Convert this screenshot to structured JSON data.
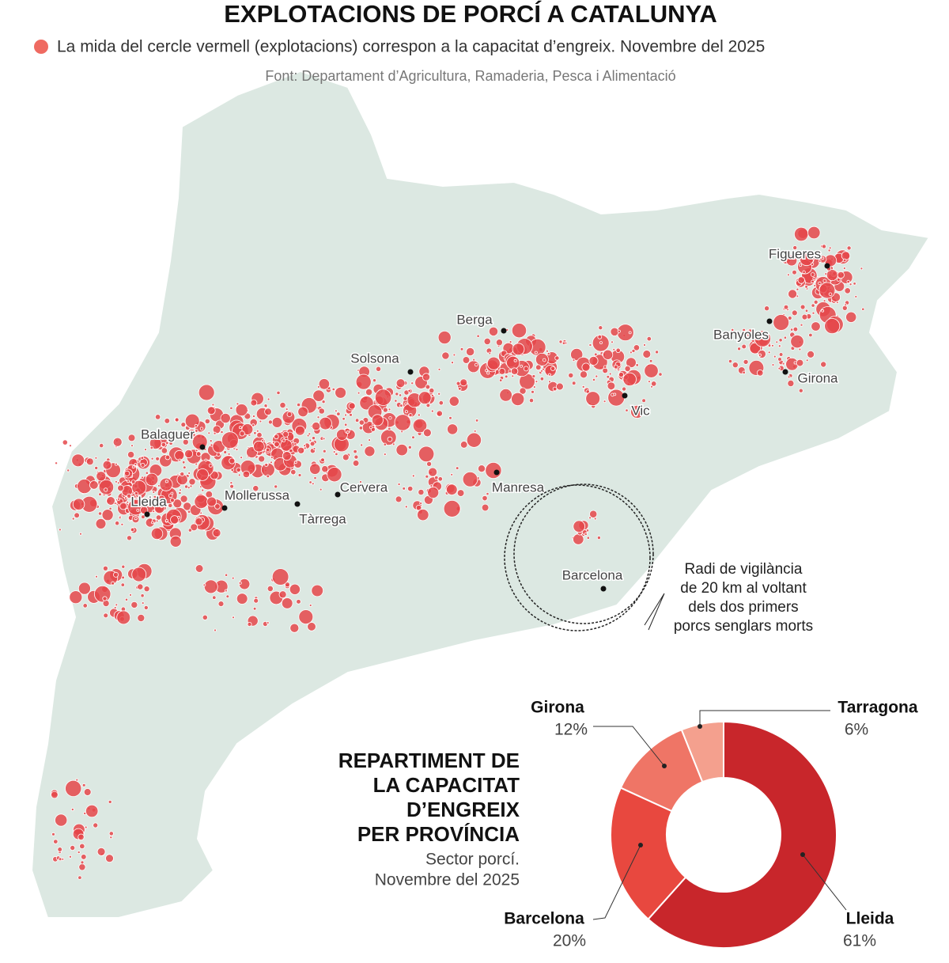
{
  "header": {
    "title": "EXPLOTACIONS DE PORCÍ A CATALUNYA",
    "legend": "La mida del cercle vermell (explotacions) correspon a la capacitat d’engreix. Novembre del 2025",
    "source": "Font: Departament d’Agricultura, Ramaderia, Pesca i Alimentació"
  },
  "map": {
    "cities": [
      "Figueres",
      "Berga",
      "Banyoles",
      "Solsona",
      "Girona",
      "Vic",
      "Balaguer",
      "Cervera",
      "Manresa",
      "Lleida",
      "Mollerussa",
      "Tàrrega",
      "Barcelona"
    ],
    "annotation": [
      "Radi de vigilància",
      "de 20 km al voltant",
      "dels dos primers",
      "porcs senglars morts"
    ]
  },
  "chart_data": {
    "type": "donut",
    "title_lines": [
      "REPARTIMENT DE",
      "LA CAPACITAT",
      "D’ENGREIX",
      "PER PROVÍNCIA"
    ],
    "subtitle_lines": [
      "Sector porcí.",
      "Novembre del 2025"
    ],
    "categories": [
      "Lleida",
      "Barcelona",
      "Girona",
      "Tarragona"
    ],
    "values": [
      61,
      20,
      12,
      6
    ],
    "value_labels": [
      "61%",
      "20%",
      "12%",
      "6%"
    ],
    "colors": [
      "#c8262b",
      "#e8483f",
      "#ef7566",
      "#f4a08e"
    ]
  }
}
